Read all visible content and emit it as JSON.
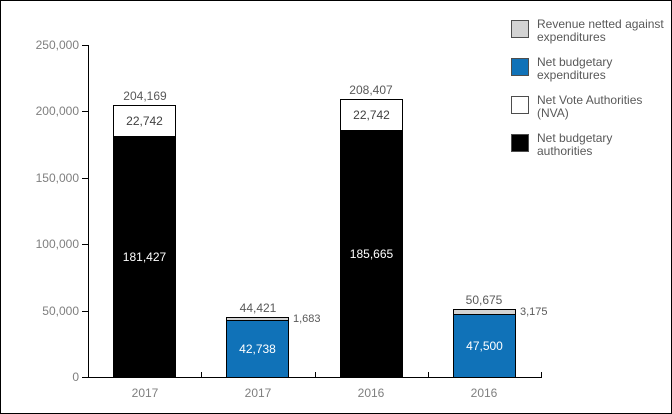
{
  "chart_data": {
    "type": "bar",
    "subtype": "stacked",
    "title": "",
    "xlabel": "",
    "ylabel": "",
    "grid": false,
    "legend_position": "top-right",
    "categories": [
      "2017",
      "2017",
      "2016",
      "2016"
    ],
    "ylim": [
      0,
      250000
    ],
    "yticks": [
      {
        "value": 0,
        "label": "0"
      },
      {
        "value": 50000,
        "label": "50,000"
      },
      {
        "value": 100000,
        "label": "100,000"
      },
      {
        "value": 150000,
        "label": "150,000"
      },
      {
        "value": 200000,
        "label": "200,000"
      },
      {
        "value": 250000,
        "label": "250,000"
      }
    ],
    "colors": {
      "blue": "#1072b8",
      "gray": "#d3d3d3",
      "white": "#ffffff",
      "black": "#000000",
      "axis_text": "#7f7f7f",
      "label_text": "#595959"
    },
    "legend": [
      {
        "label": "Revenue netted against\nexpenditures",
        "color_key": "gray"
      },
      {
        "label": "Net budgetary\nexpenditures",
        "color_key": "blue"
      },
      {
        "label": "Net Vote Authorities\n(NVA)",
        "color_key": "white"
      },
      {
        "label": "Net budgetary\nauthorities",
        "color_key": "black"
      }
    ],
    "bars": [
      {
        "category": "2017",
        "total": 204169,
        "total_label": "204,169",
        "segments": [
          {
            "series": "Net budgetary authorities",
            "color_key": "black",
            "value": 181427,
            "label": "181,427",
            "label_pos": "inside",
            "label_color": "#ffffff"
          },
          {
            "series": "Net Vote Authorities (NVA)",
            "color_key": "white",
            "value": 22742,
            "label": "22,742",
            "label_pos": "inside",
            "label_color": "#404040"
          }
        ]
      },
      {
        "category": "2017",
        "total": 44421,
        "total_label": "44,421",
        "segments": [
          {
            "series": "Net budgetary expenditures",
            "color_key": "blue",
            "value": 42738,
            "label": "42,738",
            "label_pos": "inside",
            "label_color": "#ffffff"
          },
          {
            "series": "Revenue netted against expenditures",
            "color_key": "gray",
            "value": 1683,
            "label": "1,683",
            "label_pos": "right",
            "label_color": "#595959"
          }
        ]
      },
      {
        "category": "2016",
        "total": 208407,
        "total_label": "208,407",
        "segments": [
          {
            "series": "Net budgetary authorities",
            "color_key": "black",
            "value": 185665,
            "label": "185,665",
            "label_pos": "inside",
            "label_color": "#ffffff"
          },
          {
            "series": "Net Vote Authorities (NVA)",
            "color_key": "white",
            "value": 22742,
            "label": "22,742",
            "label_pos": "inside",
            "label_color": "#404040"
          }
        ]
      },
      {
        "category": "2016",
        "total": 50675,
        "total_label": "50,675",
        "segments": [
          {
            "series": "Net budgetary expenditures",
            "color_key": "blue",
            "value": 47500,
            "label": "47,500",
            "label_pos": "inside",
            "label_color": "#ffffff"
          },
          {
            "series": "Revenue netted against expenditures",
            "color_key": "gray",
            "value": 3175,
            "label": "3,175",
            "label_pos": "right",
            "label_color": "#595959"
          }
        ]
      }
    ]
  }
}
